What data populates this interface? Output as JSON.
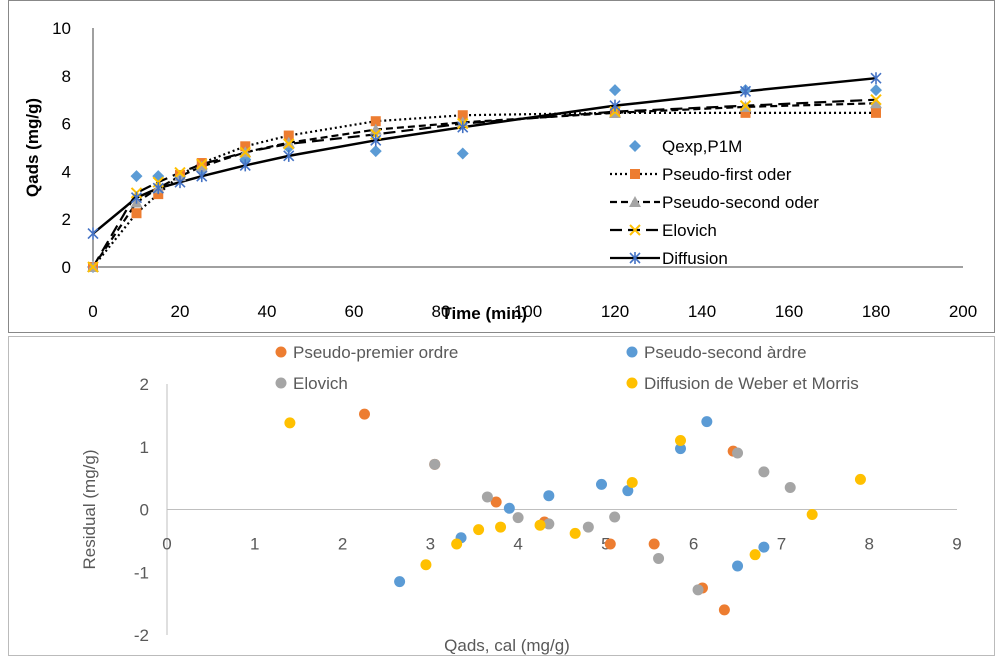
{
  "chart_data": [
    {
      "type": "scatter",
      "title": "",
      "xlabel": "Time (min)",
      "ylabel": "Qads (mg/g)",
      "xlim": [
        0,
        200
      ],
      "ylim": [
        0,
        10
      ],
      "xticks": [
        "0",
        "20",
        "40",
        "60",
        "80",
        "100",
        "120",
        "140",
        "160",
        "180",
        "200"
      ],
      "yticks": [
        "0",
        "2",
        "4",
        "6",
        "8",
        "10"
      ],
      "grid": false,
      "legend_position": "right",
      "series": [
        {
          "name": "Qexp,P1M",
          "style": "markers",
          "marker": "diamond",
          "color": "#5b9bd5",
          "x": [
            0,
            10,
            15,
            20,
            25,
            35,
            45,
            65,
            85,
            120,
            150,
            180
          ],
          "y": [
            0,
            3.8,
            3.8,
            3.8,
            4.1,
            4.5,
            5.0,
            4.85,
            4.75,
            7.4,
            7.4,
            7.4
          ]
        },
        {
          "name": "Pseudo-first oder",
          "style": "dotted-line",
          "marker": "square",
          "color": "#ed7d31",
          "x": [
            0,
            10,
            15,
            20,
            25,
            35,
            45,
            65,
            85,
            120,
            150,
            180
          ],
          "y": [
            0,
            2.25,
            3.05,
            3.85,
            4.35,
            5.05,
            5.5,
            6.1,
            6.35,
            6.45,
            6.45,
            6.45
          ]
        },
        {
          "name": "Pseudo-second oder",
          "style": "dash-line",
          "marker": "triangle",
          "color": "#a5a5a5",
          "x": [
            0,
            10,
            15,
            20,
            25,
            35,
            45,
            65,
            85,
            120,
            150,
            180
          ],
          "y": [
            0,
            2.7,
            3.3,
            3.8,
            4.2,
            4.8,
            5.2,
            5.75,
            6.05,
            6.45,
            6.7,
            6.85
          ]
        },
        {
          "name": "Elovich",
          "style": "long-dash-line",
          "marker": "x",
          "color": "#ffc000",
          "x": [
            0,
            10,
            15,
            20,
            25,
            35,
            45,
            65,
            85,
            120,
            150,
            180
          ],
          "y": [
            0,
            3.1,
            3.55,
            3.95,
            4.3,
            4.8,
            5.15,
            5.55,
            6.0,
            6.5,
            6.75,
            7.0
          ]
        },
        {
          "name": "Diffusion",
          "style": "solid-line",
          "marker": "star",
          "color": "#4472c4",
          "x": [
            0,
            10,
            15,
            20,
            25,
            35,
            45,
            65,
            85,
            120,
            150,
            180
          ],
          "y": [
            1.4,
            2.9,
            3.3,
            3.55,
            3.8,
            4.25,
            4.65,
            5.3,
            5.85,
            6.75,
            7.35,
            7.9
          ]
        }
      ]
    },
    {
      "type": "scatter",
      "title": "",
      "xlabel": "Qads, cal (mg/g)",
      "ylabel": "Residual (mg/g)",
      "xlim": [
        0,
        9
      ],
      "ylim": [
        -2,
        2
      ],
      "xticks": [
        "0",
        "1",
        "2",
        "3",
        "4",
        "5",
        "6",
        "7",
        "8",
        "9"
      ],
      "yticks": [
        "-2",
        "-1",
        "0",
        "1",
        "2"
      ],
      "grid": false,
      "legend_position": "top",
      "series": [
        {
          "name": "Pseudo-premier ordre",
          "color": "#ed7d31",
          "x": [
            2.25,
            3.05,
            3.75,
            4.3,
            5.05,
            5.55,
            6.1,
            6.35,
            6.45
          ],
          "y": [
            1.52,
            0.72,
            0.12,
            -0.2,
            -0.55,
            -0.55,
            -1.25,
            -1.6,
            0.93
          ]
        },
        {
          "name": "Pseudo-second àrdre",
          "color": "#5b9bd5",
          "x": [
            2.65,
            3.35,
            3.9,
            4.35,
            4.95,
            5.25,
            5.85,
            6.15,
            6.5,
            6.8
          ],
          "y": [
            -1.15,
            -0.45,
            0.02,
            0.22,
            0.4,
            0.3,
            0.97,
            1.4,
            -0.9,
            -0.6
          ]
        },
        {
          "name": "Elovich",
          "color": "#a5a5a5",
          "x": [
            3.05,
            3.65,
            4.0,
            4.35,
            4.8,
            5.1,
            5.6,
            6.05,
            6.5,
            6.8,
            7.1
          ],
          "y": [
            0.72,
            0.2,
            -0.13,
            -0.23,
            -0.28,
            -0.12,
            -0.78,
            -1.28,
            0.9,
            0.6,
            0.35
          ]
        },
        {
          "name": "Diffusion de Weber et Morris",
          "color": "#ffc000",
          "x": [
            1.4,
            2.95,
            3.3,
            3.55,
            3.8,
            4.25,
            4.65,
            5.3,
            5.85,
            6.7,
            7.35,
            7.9
          ],
          "y": [
            1.38,
            -0.88,
            -0.55,
            -0.32,
            -0.28,
            -0.25,
            -0.38,
            0.43,
            1.1,
            -0.72,
            -0.08,
            0.48
          ]
        }
      ]
    }
  ]
}
